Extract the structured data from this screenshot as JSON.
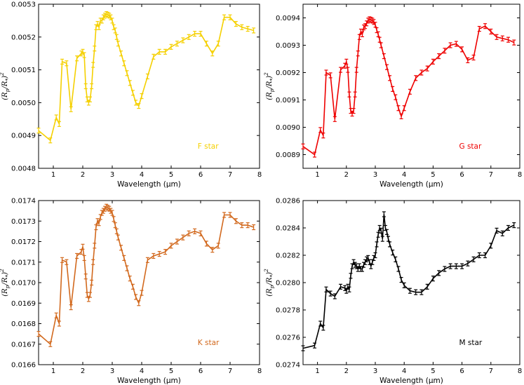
{
  "chart_data": [
    {
      "type": "line",
      "panel": "top-left",
      "annotation": "F star",
      "color": "#f5d000",
      "xlabel": "Wavelength (μm)",
      "ylabel": "(R_p/R_*)^2",
      "xlim": [
        0.5,
        8
      ],
      "ylim": [
        0.0048,
        0.0053
      ],
      "xticks": [
        1,
        2,
        3,
        4,
        5,
        6,
        7,
        8
      ],
      "yticks": [
        0.0048,
        0.0049,
        0.005,
        0.0051,
        0.0052,
        0.0053
      ],
      "ytick_labels": [
        "0.0048",
        "0.0049",
        "0.0050",
        "0.0051",
        "0.0052",
        "0.0053"
      ],
      "series": [
        {
          "x": [
            0.5,
            0.9,
            1.1,
            1.2,
            1.3,
            1.45,
            1.6,
            1.8,
            1.95,
            2.0,
            2.05,
            2.1,
            2.15,
            2.2,
            2.25,
            2.3,
            2.35,
            2.4,
            2.45,
            2.5,
            2.55,
            2.6,
            2.65,
            2.7,
            2.75,
            2.8,
            2.85,
            2.9,
            2.95,
            3.0,
            3.05,
            3.1,
            3.15,
            3.2,
            3.3,
            3.4,
            3.5,
            3.6,
            3.7,
            3.8,
            3.9,
            4.0,
            4.2,
            4.4,
            4.6,
            4.8,
            5.0,
            5.2,
            5.4,
            5.6,
            5.8,
            6.0,
            6.2,
            6.4,
            6.6,
            6.8,
            7.0,
            7.2,
            7.4,
            7.6,
            7.8
          ],
          "values": [
            0.004915,
            0.004885,
            0.004955,
            0.004935,
            0.005125,
            0.00512,
            0.00498,
            0.005135,
            0.00515,
            0.005155,
            0.005145,
            0.00505,
            0.00501,
            0.005,
            0.00501,
            0.00505,
            0.005115,
            0.005165,
            0.00523,
            0.00524,
            0.00523,
            0.00525,
            0.00525,
            0.00526,
            0.005265,
            0.00527,
            0.005268,
            0.005265,
            0.00526,
            0.00525,
            0.00523,
            0.00522,
            0.0052,
            0.00518,
            0.00515,
            0.00512,
            0.00509,
            0.00506,
            0.00503,
            0.005,
            0.00499,
            0.00502,
            0.00508,
            0.00514,
            0.005155,
            0.005155,
            0.00517,
            0.00518,
            0.00519,
            0.0052,
            0.00521,
            0.00521,
            0.00518,
            0.00515,
            0.00518,
            0.00526,
            0.00526,
            0.00524,
            0.00523,
            0.005225,
            0.00522
          ]
        }
      ]
    },
    {
      "type": "line",
      "panel": "top-right",
      "annotation": "G star",
      "color": "#ee0000",
      "xlabel": "Wavelength (μm)",
      "ylabel": "(R_p/R_*)^2",
      "xlim": [
        0.5,
        8
      ],
      "ylim": [
        0.00885,
        0.00945
      ],
      "xticks": [
        1,
        2,
        3,
        4,
        5,
        6,
        7,
        8
      ],
      "yticks": [
        0.0089,
        0.009,
        0.0091,
        0.0092,
        0.0093,
        0.0094
      ],
      "ytick_labels": [
        "0.0089",
        "0.0090",
        "0.0091",
        "0.0092",
        "0.0093",
        "0.0094"
      ],
      "series": [
        {
          "x": [
            0.5,
            0.9,
            1.1,
            1.2,
            1.3,
            1.45,
            1.6,
            1.8,
            1.95,
            2.0,
            2.05,
            2.1,
            2.15,
            2.2,
            2.25,
            2.3,
            2.35,
            2.4,
            2.45,
            2.5,
            2.55,
            2.6,
            2.65,
            2.7,
            2.75,
            2.8,
            2.85,
            2.9,
            2.95,
            3.0,
            3.05,
            3.1,
            3.15,
            3.2,
            3.3,
            3.4,
            3.5,
            3.6,
            3.7,
            3.8,
            3.9,
            4.0,
            4.2,
            4.4,
            4.6,
            4.8,
            5.0,
            5.2,
            5.4,
            5.6,
            5.8,
            6.0,
            6.2,
            6.4,
            6.6,
            6.8,
            7.0,
            7.2,
            7.4,
            7.6,
            7.8
          ],
          "values": [
            0.00893,
            0.0089,
            0.00899,
            0.00897,
            0.0092,
            0.00919,
            0.00903,
            0.00921,
            0.009225,
            0.00924,
            0.00921,
            0.00912,
            0.00906,
            0.00905,
            0.00906,
            0.00912,
            0.00921,
            0.00927,
            0.00933,
            0.00935,
            0.00934,
            0.009365,
            0.00937,
            0.00938,
            0.00939,
            0.009395,
            0.009393,
            0.00939,
            0.009385,
            0.009375,
            0.009355,
            0.00934,
            0.00932,
            0.0093,
            0.00926,
            0.00922,
            0.00918,
            0.00914,
            0.00911,
            0.00907,
            0.00904,
            0.00907,
            0.00913,
            0.00918,
            0.0092,
            0.009215,
            0.00924,
            0.00926,
            0.00928,
            0.0093,
            0.009305,
            0.009285,
            0.009245,
            0.009255,
            0.00936,
            0.00937,
            0.00935,
            0.00933,
            0.009325,
            0.00932,
            0.00931
          ]
        }
      ]
    },
    {
      "type": "line",
      "panel": "bottom-left",
      "annotation": "K star",
      "color": "#d2691e",
      "xlabel": "Wavelength (μm)",
      "ylabel": "(R_p/R_*)^2",
      "xlim": [
        0.5,
        8
      ],
      "ylim": [
        0.0166,
        0.0174
      ],
      "xticks": [
        1,
        2,
        3,
        4,
        5,
        6,
        7,
        8
      ],
      "yticks": [
        0.0166,
        0.0167,
        0.0168,
        0.0169,
        0.017,
        0.0171,
        0.0172,
        0.0173,
        0.0174
      ],
      "ytick_labels": [
        "0.0166",
        "0.0167",
        "0.0168",
        "0.0169",
        "0.0170",
        "0.0171",
        "0.0172",
        "0.0173",
        "0.0174"
      ],
      "series": [
        {
          "x": [
            0.5,
            0.9,
            1.1,
            1.2,
            1.3,
            1.45,
            1.6,
            1.8,
            1.95,
            2.0,
            2.05,
            2.1,
            2.15,
            2.2,
            2.25,
            2.3,
            2.35,
            2.4,
            2.45,
            2.5,
            2.55,
            2.6,
            2.65,
            2.7,
            2.75,
            2.8,
            2.85,
            2.9,
            2.95,
            3.0,
            3.05,
            3.1,
            3.15,
            3.2,
            3.3,
            3.4,
            3.5,
            3.6,
            3.7,
            3.8,
            3.9,
            4.0,
            4.2,
            4.4,
            4.6,
            4.8,
            5.0,
            5.2,
            5.4,
            5.6,
            5.8,
            6.0,
            6.2,
            6.4,
            6.6,
            6.8,
            7.0,
            7.2,
            7.4,
            7.6,
            7.8
          ],
          "values": [
            0.01675,
            0.0167,
            0.01684,
            0.0168,
            0.01711,
            0.0171,
            0.01688,
            0.01713,
            0.01715,
            0.017175,
            0.01712,
            0.01703,
            0.01694,
            0.01692,
            0.01694,
            0.017,
            0.0171,
            0.01718,
            0.01727,
            0.0173,
            0.01729,
            0.01732,
            0.01734,
            0.01735,
            0.01736,
            0.01737,
            0.017365,
            0.01736,
            0.01735,
            0.01734,
            0.01731,
            0.01728,
            0.01725,
            0.01722,
            0.01717,
            0.01712,
            0.01707,
            0.01702,
            0.01698,
            0.01693,
            0.0169,
            0.01695,
            0.01711,
            0.01713,
            0.01714,
            0.01715,
            0.01718,
            0.0172,
            0.01722,
            0.01724,
            0.01725,
            0.01724,
            0.01719,
            0.01716,
            0.01718,
            0.01733,
            0.01733,
            0.0173,
            0.01728,
            0.01728,
            0.01727
          ]
        }
      ]
    },
    {
      "type": "line",
      "panel": "bottom-right",
      "annotation": "M star",
      "color": "#000000",
      "xlabel": "Wavelength (μm)",
      "ylabel": "(R_p/R_*)^2",
      "xlim": [
        0.5,
        8
      ],
      "ylim": [
        0.0274,
        0.0286
      ],
      "xticks": [
        1,
        2,
        3,
        4,
        5,
        6,
        7,
        8
      ],
      "yticks": [
        0.0274,
        0.0276,
        0.0278,
        0.028,
        0.0282,
        0.0284,
        0.0286
      ],
      "ytick_labels": [
        "0.0274",
        "0.0276",
        "0.0278",
        "0.0280",
        "0.0282",
        "0.0284",
        "0.0286"
      ],
      "series": [
        {
          "x": [
            0.5,
            0.9,
            1.1,
            1.2,
            1.3,
            1.45,
            1.6,
            1.8,
            1.95,
            2.0,
            2.05,
            2.1,
            2.15,
            2.2,
            2.25,
            2.3,
            2.35,
            2.4,
            2.45,
            2.5,
            2.55,
            2.6,
            2.65,
            2.7,
            2.75,
            2.8,
            2.85,
            2.9,
            2.95,
            3.0,
            3.05,
            3.1,
            3.15,
            3.2,
            3.25,
            3.3,
            3.35,
            3.4,
            3.45,
            3.5,
            3.6,
            3.7,
            3.8,
            3.9,
            4.0,
            4.2,
            4.4,
            4.6,
            4.8,
            5.0,
            5.2,
            5.4,
            5.6,
            5.8,
            6.0,
            6.2,
            6.4,
            6.6,
            6.8,
            7.0,
            7.2,
            7.4,
            7.6,
            7.8
          ],
          "values": [
            0.02752,
            0.02754,
            0.0277,
            0.02767,
            0.02795,
            0.02792,
            0.0279,
            0.02797,
            0.02796,
            0.02794,
            0.02797,
            0.02795,
            0.02805,
            0.02812,
            0.02815,
            0.02813,
            0.02812,
            0.0281,
            0.02812,
            0.0281,
            0.0281,
            0.02813,
            0.02815,
            0.02817,
            0.02818,
            0.02815,
            0.02812,
            0.02815,
            0.02818,
            0.0282,
            0.02828,
            0.02835,
            0.0284,
            0.02838,
            0.02832,
            0.0285,
            0.0284,
            0.02837,
            0.02832,
            0.02828,
            0.02822,
            0.02817,
            0.0281,
            0.02802,
            0.02798,
            0.02794,
            0.02793,
            0.02793,
            0.02797,
            0.02803,
            0.02807,
            0.0281,
            0.02812,
            0.02812,
            0.02812,
            0.02814,
            0.02817,
            0.0282,
            0.0282,
            0.02827,
            0.02838,
            0.02836,
            0.0284,
            0.02842
          ]
        }
      ]
    }
  ]
}
